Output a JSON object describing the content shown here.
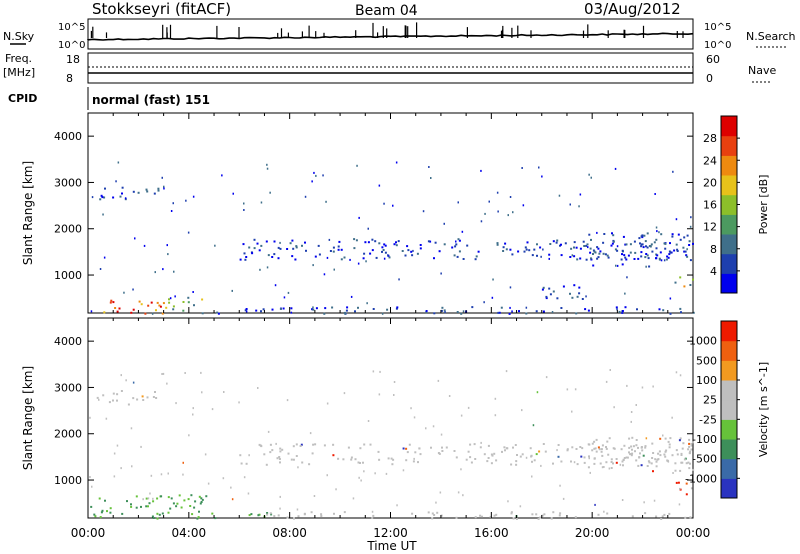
{
  "header": {
    "station": "Stokkseyri (fitACF)",
    "beam": "Beam 04",
    "date": "03/Aug/2012"
  },
  "status_panel": {
    "nsky_label": "N.Sky",
    "nsky_top": "10^5",
    "nsky_bottom": "10^0",
    "nsearch_label": "N.Search",
    "nsearch_top": "10^5",
    "nsearch_bottom": "10^0",
    "freq_label": "Freq.",
    "freq_unit": "[MHz]",
    "freq_top": "18",
    "freq_bottom": "8",
    "nave_label": "Nave",
    "nave_top": "60",
    "nave_bottom": "0",
    "cpid_label": "CPID",
    "cpid_value": "normal (fast) 151"
  },
  "chart_data": [
    {
      "type": "heatmap",
      "title": "",
      "xlabel": "Time UT",
      "ylabel": "Slant Range [km]",
      "xlim": [
        0,
        24
      ],
      "ylim": [
        180,
        4500
      ],
      "x_ticks": [
        "00:00",
        "04:00",
        "08:00",
        "12:00",
        "16:00",
        "20:00",
        "00:00"
      ],
      "y_ticks": [
        "1000",
        "2000",
        "3000",
        "4000"
      ],
      "colorbar": {
        "label": "Power [dB]",
        "ticks": [
          "4",
          "8",
          "12",
          "16",
          "20",
          "24",
          "28"
        ],
        "range": [
          0,
          32
        ],
        "colors": [
          "#0000ee",
          "#1e3fae",
          "#3f6f8a",
          "#4c9a60",
          "#8cbf2a",
          "#e7c21a",
          "#ee8a10",
          "#e84010",
          "#dd0000"
        ]
      },
      "regions": [
        {
          "t0": 0.0,
          "t1": 3.0,
          "r0": 180,
          "r1": 480,
          "level": "high"
        },
        {
          "t0": 3.0,
          "t1": 4.5,
          "r0": 230,
          "r1": 560,
          "level": "mid"
        },
        {
          "t0": 4.5,
          "t1": 7.0,
          "r0": 180,
          "r1": 330,
          "level": "low"
        },
        {
          "t0": 0.3,
          "t1": 2.8,
          "r0": 2650,
          "r1": 2950,
          "level": "low"
        },
        {
          "t0": 6.0,
          "t1": 24.0,
          "r0": 1350,
          "r1": 1800,
          "level": "low"
        },
        {
          "t0": 19.5,
          "t1": 24.0,
          "r0": 1200,
          "r1": 1950,
          "level": "low"
        },
        {
          "t0": 23.2,
          "t1": 24.0,
          "r0": 700,
          "r1": 1000,
          "level": "mid"
        },
        {
          "t0": 18.0,
          "t1": 19.8,
          "r0": 500,
          "r1": 900,
          "level": "low"
        },
        {
          "t0": 7.0,
          "t1": 24.0,
          "r0": 180,
          "r1": 330,
          "level": "low"
        }
      ]
    },
    {
      "type": "heatmap",
      "title": "",
      "xlabel": "Time UT",
      "ylabel": "Slant Range [km]",
      "xlim": [
        0,
        24
      ],
      "ylim": [
        180,
        4500
      ],
      "x_ticks": [
        "00:00",
        "04:00",
        "08:00",
        "12:00",
        "16:00",
        "20:00",
        "00:00"
      ],
      "y_ticks": [
        "1000",
        "2000",
        "3000",
        "4000"
      ],
      "colorbar": {
        "label": "Velocity [m s^-1]",
        "ticks": [
          "1000",
          "500",
          "100",
          "25",
          "-25",
          "-100",
          "-500",
          "-1000"
        ],
        "colors": [
          "#2a33c0",
          "#3a6aa8",
          "#3d8f5a",
          "#66c23a",
          "#bfbfbf",
          "#bfbfbf",
          "#f29a20",
          "#ef6010",
          "#ee1a00"
        ]
      },
      "regions": [
        {
          "t0": 0.0,
          "t1": 5.0,
          "r0": 180,
          "r1": 700,
          "level": "green"
        },
        {
          "t0": 5.0,
          "t1": 7.5,
          "r0": 180,
          "r1": 330,
          "level": "green"
        },
        {
          "t0": 6.0,
          "t1": 24.0,
          "r0": 1350,
          "r1": 1800,
          "level": "grey"
        },
        {
          "t0": 19.5,
          "t1": 24.0,
          "r0": 1200,
          "r1": 1950,
          "level": "grey"
        },
        {
          "t0": 23.2,
          "t1": 24.0,
          "r0": 700,
          "r1": 1000,
          "level": "orange"
        },
        {
          "t0": 7.0,
          "t1": 24.0,
          "r0": 180,
          "r1": 330,
          "level": "grey"
        },
        {
          "t0": 0.3,
          "t1": 2.8,
          "r0": 2650,
          "r1": 2950,
          "level": "grey"
        }
      ]
    }
  ]
}
